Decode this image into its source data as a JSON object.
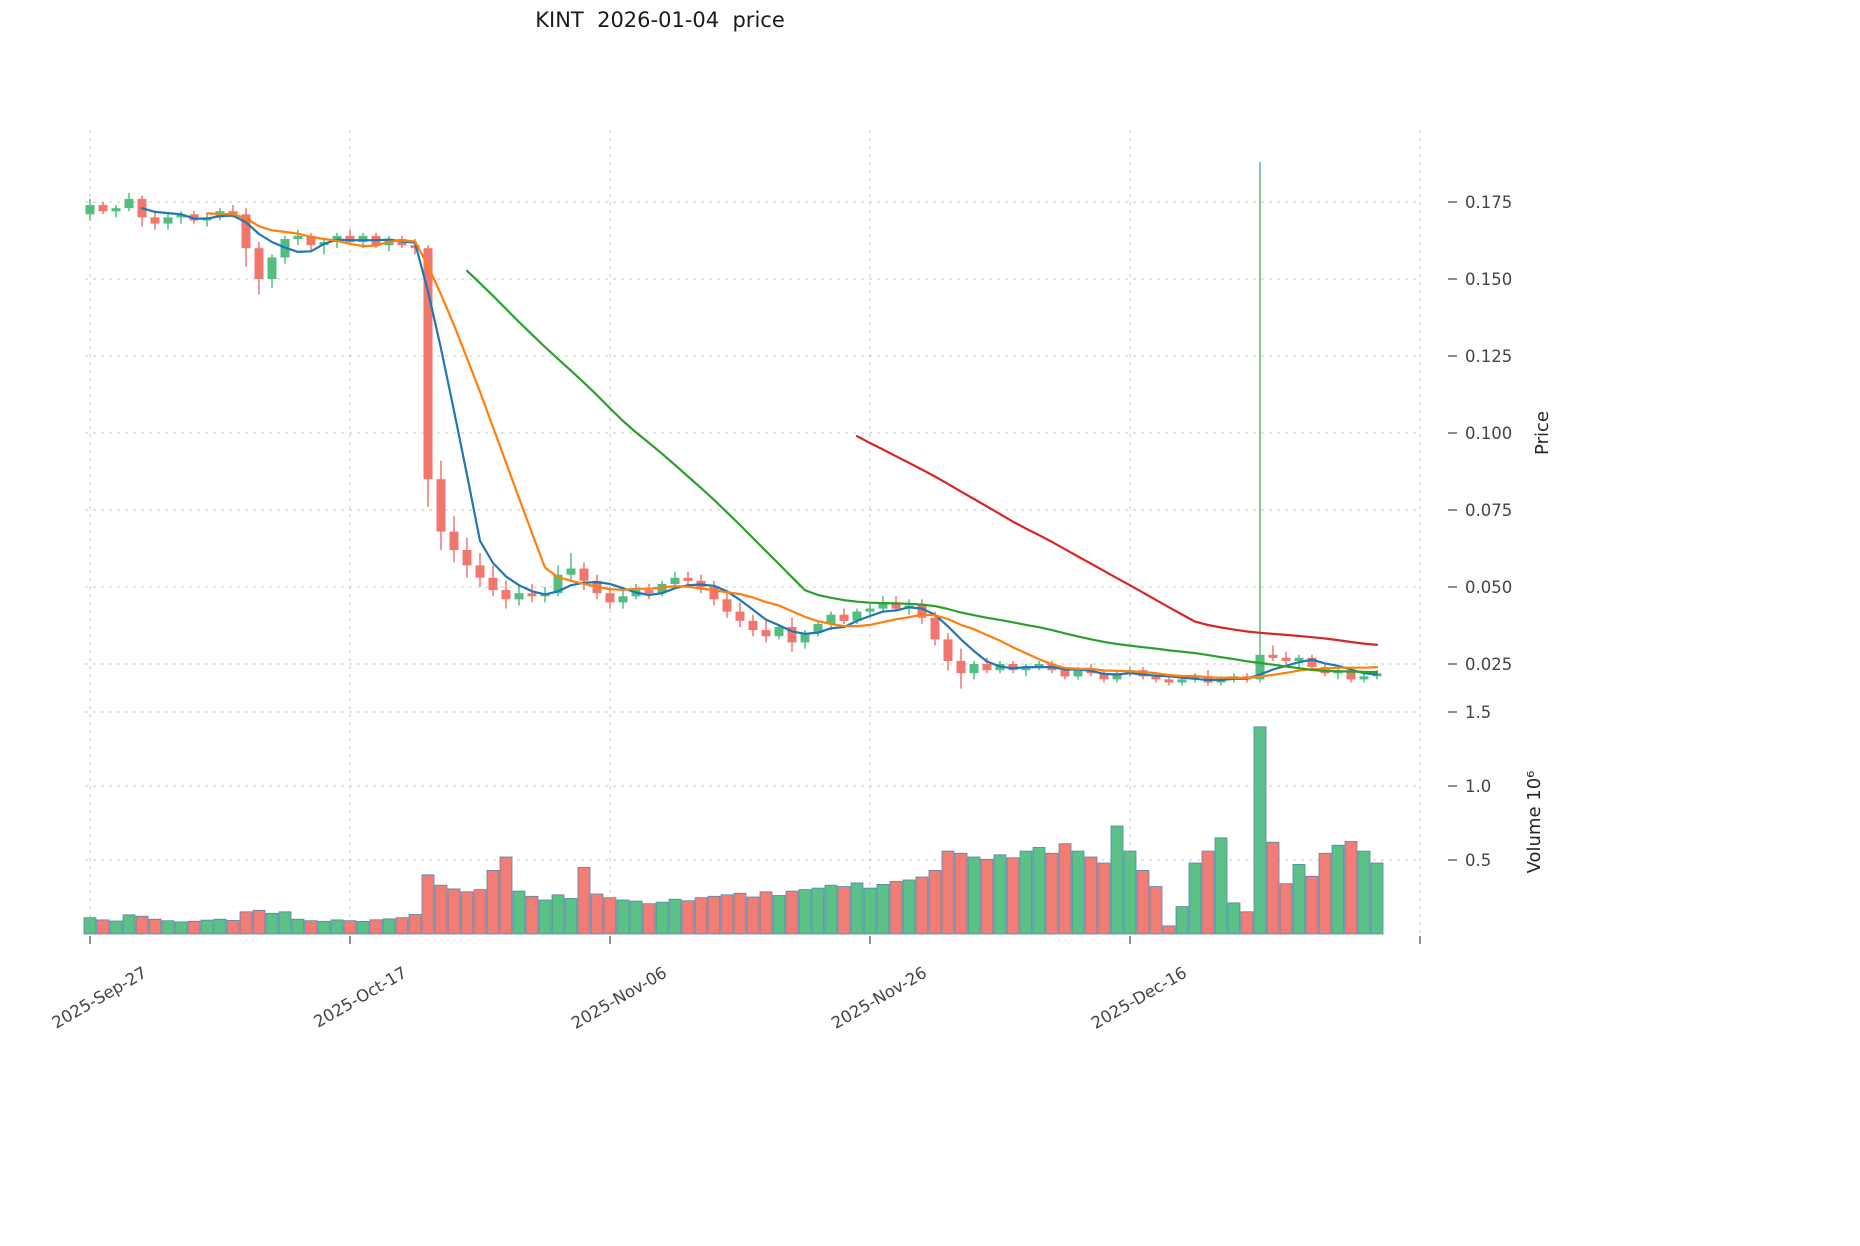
{
  "title": "KINT  2026-01-04  price",
  "colors": {
    "up": "#52be80",
    "down": "#f1766e",
    "volume_edge": "#5585ad",
    "grid": "#c9c9c9",
    "tick_text": "#444444",
    "title_text": "#1a1a1a"
  },
  "price_axis": {
    "label": "Price",
    "ticks": [
      "0.175",
      "0.150",
      "0.125",
      "0.100",
      "0.075",
      "0.050",
      "0.025"
    ]
  },
  "volume_axis": {
    "label": "Volume",
    "scale": "10⁶",
    "ticks": [
      "0.5",
      "1.0",
      "1.5"
    ]
  },
  "x_axis": {
    "ticks": [
      {
        "label": "2025-Sep-27",
        "date": "2025-09-27"
      },
      {
        "label": "2025-Oct-17",
        "date": "2025-10-17"
      },
      {
        "label": "2025-Nov-06",
        "date": "2025-11-06"
      },
      {
        "label": "2025-Nov-26",
        "date": "2025-11-26"
      },
      {
        "label": "2025-Dec-16",
        "date": "2025-12-16"
      }
    ]
  },
  "chart_data": {
    "type": "candlestick",
    "title": "KINT  2026-01-04  price",
    "ylabel": "Price",
    "ylabel2": "Volume  10⁶",
    "price_ylim": [
      0.013,
      0.198
    ],
    "volume_ylim": [
      0,
      1550000
    ],
    "grid": true,
    "moving_averages": [
      {
        "window": 5,
        "color": "#1f77b4"
      },
      {
        "window": 10,
        "color": "#ff7f0e"
      },
      {
        "window": 30,
        "color": "#2ca02c"
      },
      {
        "window": 60,
        "color": "#d62728"
      }
    ],
    "candles": {
      "columns": [
        "date",
        "open",
        "high",
        "low",
        "close",
        "volume"
      ],
      "rows": [
        [
          "2025-09-27",
          0.171,
          0.176,
          0.169,
          0.174,
          110000
        ],
        [
          "2025-09-28",
          0.174,
          0.175,
          0.171,
          0.172,
          95000
        ],
        [
          "2025-09-29",
          0.172,
          0.174,
          0.17,
          0.173,
          88000
        ],
        [
          "2025-09-30",
          0.173,
          0.178,
          0.172,
          0.176,
          130000
        ],
        [
          "2025-10-01",
          0.176,
          0.177,
          0.167,
          0.17,
          120000
        ],
        [
          "2025-10-02",
          0.17,
          0.172,
          0.166,
          0.168,
          100000
        ],
        [
          "2025-10-03",
          0.168,
          0.171,
          0.166,
          0.17,
          90000
        ],
        [
          "2025-10-04",
          0.17,
          0.172,
          0.168,
          0.171,
          82000
        ],
        [
          "2025-10-05",
          0.171,
          0.172,
          0.168,
          0.169,
          86000
        ],
        [
          "2025-10-06",
          0.169,
          0.171,
          0.167,
          0.17,
          94000
        ],
        [
          "2025-10-07",
          0.17,
          0.173,
          0.169,
          0.172,
          100000
        ],
        [
          "2025-10-08",
          0.172,
          0.174,
          0.17,
          0.171,
          92000
        ],
        [
          "2025-10-09",
          0.171,
          0.173,
          0.154,
          0.16,
          150000
        ],
        [
          "2025-10-10",
          0.16,
          0.162,
          0.145,
          0.15,
          160000
        ],
        [
          "2025-10-11",
          0.15,
          0.158,
          0.147,
          0.157,
          140000
        ],
        [
          "2025-10-12",
          0.157,
          0.164,
          0.155,
          0.163,
          150000
        ],
        [
          "2025-10-13",
          0.163,
          0.166,
          0.161,
          0.164,
          100000
        ],
        [
          "2025-10-14",
          0.164,
          0.165,
          0.159,
          0.161,
          90000
        ],
        [
          "2025-10-15",
          0.161,
          0.163,
          0.158,
          0.162,
          86000
        ],
        [
          "2025-10-16",
          0.162,
          0.165,
          0.16,
          0.164,
          95000
        ],
        [
          "2025-10-17",
          0.164,
          0.166,
          0.161,
          0.162,
          90000
        ],
        [
          "2025-10-18",
          0.162,
          0.165,
          0.16,
          0.164,
          85000
        ],
        [
          "2025-10-19",
          0.164,
          0.165,
          0.16,
          0.161,
          96000
        ],
        [
          "2025-10-20",
          0.161,
          0.164,
          0.159,
          0.163,
          102000
        ],
        [
          "2025-10-21",
          0.163,
          0.164,
          0.16,
          0.161,
          110000
        ],
        [
          "2025-10-22",
          0.161,
          0.163,
          0.158,
          0.16,
          132000
        ],
        [
          "2025-10-23",
          0.16,
          0.161,
          0.076,
          0.085,
          400000
        ],
        [
          "2025-10-24",
          0.085,
          0.091,
          0.062,
          0.068,
          330000
        ],
        [
          "2025-10-25",
          0.068,
          0.073,
          0.058,
          0.062,
          305000
        ],
        [
          "2025-10-26",
          0.062,
          0.066,
          0.053,
          0.057,
          285000
        ],
        [
          "2025-10-27",
          0.057,
          0.061,
          0.05,
          0.053,
          300000
        ],
        [
          "2025-10-28",
          0.053,
          0.057,
          0.047,
          0.049,
          430000
        ],
        [
          "2025-10-29",
          0.049,
          0.052,
          0.043,
          0.046,
          520000
        ],
        [
          "2025-10-30",
          0.046,
          0.051,
          0.044,
          0.048,
          290000
        ],
        [
          "2025-10-31",
          0.048,
          0.051,
          0.045,
          0.047,
          255000
        ],
        [
          "2025-11-01",
          0.047,
          0.05,
          0.045,
          0.048,
          230000
        ],
        [
          "2025-11-02",
          0.048,
          0.057,
          0.047,
          0.054,
          265000
        ],
        [
          "2025-11-03",
          0.054,
          0.061,
          0.052,
          0.056,
          240000
        ],
        [
          "2025-11-04",
          0.056,
          0.058,
          0.049,
          0.052,
          450000
        ],
        [
          "2025-11-05",
          0.052,
          0.054,
          0.046,
          0.048,
          270000
        ],
        [
          "2025-11-06",
          0.048,
          0.05,
          0.043,
          0.045,
          245000
        ],
        [
          "2025-11-07",
          0.045,
          0.049,
          0.043,
          0.047,
          230000
        ],
        [
          "2025-11-08",
          0.047,
          0.051,
          0.046,
          0.049,
          222000
        ],
        [
          "2025-11-09",
          0.049,
          0.051,
          0.046,
          0.048,
          205000
        ],
        [
          "2025-11-10",
          0.048,
          0.052,
          0.047,
          0.051,
          215000
        ],
        [
          "2025-11-11",
          0.051,
          0.055,
          0.05,
          0.053,
          235000
        ],
        [
          "2025-11-12",
          0.053,
          0.055,
          0.05,
          0.052,
          225000
        ],
        [
          "2025-11-13",
          0.052,
          0.054,
          0.048,
          0.05,
          245000
        ],
        [
          "2025-11-14",
          0.05,
          0.052,
          0.044,
          0.046,
          255000
        ],
        [
          "2025-11-15",
          0.046,
          0.048,
          0.04,
          0.042,
          265000
        ],
        [
          "2025-11-16",
          0.042,
          0.045,
          0.037,
          0.039,
          275000
        ],
        [
          "2025-11-17",
          0.039,
          0.041,
          0.034,
          0.036,
          250000
        ],
        [
          "2025-11-18",
          0.036,
          0.039,
          0.032,
          0.034,
          285000
        ],
        [
          "2025-11-19",
          0.034,
          0.038,
          0.033,
          0.037,
          260000
        ],
        [
          "2025-11-20",
          0.037,
          0.04,
          0.029,
          0.032,
          290000
        ],
        [
          "2025-11-21",
          0.032,
          0.036,
          0.03,
          0.035,
          300000
        ],
        [
          "2025-11-22",
          0.035,
          0.039,
          0.034,
          0.038,
          310000
        ],
        [
          "2025-11-23",
          0.038,
          0.042,
          0.036,
          0.041,
          330000
        ],
        [
          "2025-11-24",
          0.041,
          0.043,
          0.038,
          0.039,
          320000
        ],
        [
          "2025-11-25",
          0.039,
          0.043,
          0.038,
          0.042,
          345000
        ],
        [
          "2025-11-26",
          0.042,
          0.045,
          0.04,
          0.043,
          310000
        ],
        [
          "2025-11-27",
          0.043,
          0.047,
          0.042,
          0.045,
          335000
        ],
        [
          "2025-11-28",
          0.045,
          0.047,
          0.042,
          0.043,
          355000
        ],
        [
          "2025-11-29",
          0.043,
          0.046,
          0.041,
          0.044,
          365000
        ],
        [
          "2025-11-30",
          0.044,
          0.046,
          0.038,
          0.04,
          385000
        ],
        [
          "2025-12-01",
          0.04,
          0.042,
          0.031,
          0.033,
          430000
        ],
        [
          "2025-12-02",
          0.033,
          0.035,
          0.023,
          0.026,
          560000
        ],
        [
          "2025-12-03",
          0.026,
          0.03,
          0.017,
          0.022,
          545000
        ],
        [
          "2025-12-04",
          0.022,
          0.026,
          0.02,
          0.025,
          520000
        ],
        [
          "2025-12-05",
          0.025,
          0.027,
          0.022,
          0.023,
          505000
        ],
        [
          "2025-12-06",
          0.023,
          0.026,
          0.022,
          0.025,
          535000
        ],
        [
          "2025-12-07",
          0.025,
          0.026,
          0.022,
          0.023,
          515000
        ],
        [
          "2025-12-08",
          0.023,
          0.025,
          0.021,
          0.024,
          560000
        ],
        [
          "2025-12-09",
          0.024,
          0.026,
          0.023,
          0.025,
          585000
        ],
        [
          "2025-12-10",
          0.025,
          0.026,
          0.022,
          0.023,
          545000
        ],
        [
          "2025-12-11",
          0.023,
          0.024,
          0.02,
          0.021,
          610000
        ],
        [
          "2025-12-12",
          0.021,
          0.024,
          0.02,
          0.023,
          560000
        ],
        [
          "2025-12-13",
          0.023,
          0.025,
          0.021,
          0.022,
          520000
        ],
        [
          "2025-12-14",
          0.022,
          0.023,
          0.019,
          0.02,
          480000
        ],
        [
          "2025-12-15",
          0.02,
          0.023,
          0.019,
          0.022,
          730000
        ],
        [
          "2025-12-16",
          0.022,
          0.024,
          0.021,
          0.023,
          560000
        ],
        [
          "2025-12-17",
          0.023,
          0.024,
          0.02,
          0.021,
          430000
        ],
        [
          "2025-12-18",
          0.021,
          0.022,
          0.019,
          0.02,
          320000
        ],
        [
          "2025-12-19",
          0.02,
          0.021,
          0.018,
          0.019,
          55000
        ],
        [
          "2025-12-20",
          0.019,
          0.021,
          0.018,
          0.02,
          185000
        ],
        [
          "2025-12-21",
          0.02,
          0.022,
          0.019,
          0.021,
          480000
        ],
        [
          "2025-12-22",
          0.021,
          0.023,
          0.018,
          0.019,
          560000
        ],
        [
          "2025-12-23",
          0.019,
          0.021,
          0.018,
          0.02,
          650000
        ],
        [
          "2025-12-24",
          0.02,
          0.022,
          0.019,
          0.021,
          210000
        ],
        [
          "2025-12-25",
          0.021,
          0.022,
          0.019,
          0.02,
          150000
        ],
        [
          "2025-12-26",
          0.02,
          0.188,
          0.019,
          0.028,
          1400000
        ],
        [
          "2025-12-27",
          0.028,
          0.031,
          0.026,
          0.027,
          620000
        ],
        [
          "2025-12-28",
          0.027,
          0.029,
          0.025,
          0.026,
          340000
        ],
        [
          "2025-12-29",
          0.026,
          0.028,
          0.024,
          0.027,
          470000
        ],
        [
          "2025-12-30",
          0.027,
          0.028,
          0.023,
          0.024,
          390000
        ],
        [
          "2025-12-31",
          0.024,
          0.025,
          0.021,
          0.022,
          545000
        ],
        [
          "2026-01-01",
          0.022,
          0.024,
          0.02,
          0.023,
          600000
        ],
        [
          "2026-01-02",
          0.023,
          0.024,
          0.019,
          0.02,
          625000
        ],
        [
          "2026-01-03",
          0.02,
          0.022,
          0.019,
          0.021,
          560000
        ],
        [
          "2026-01-04",
          0.021,
          0.023,
          0.02,
          0.022,
          480000
        ]
      ]
    }
  }
}
